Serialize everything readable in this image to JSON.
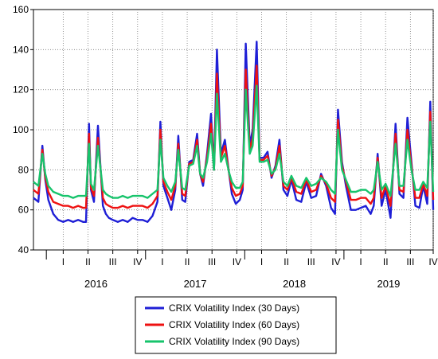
{
  "chart_data": {
    "type": "line",
    "title": "",
    "xlabel": "",
    "ylabel": "",
    "ylim": [
      40,
      160
    ],
    "yticks": [
      40,
      60,
      80,
      100,
      120,
      140,
      160
    ],
    "xlim": [
      2015.75,
      2019.78
    ],
    "grid": "dotted",
    "legend_placement": "bottom",
    "quarters": [
      {
        "label": "I",
        "t": 2016.05
      },
      {
        "label": "II",
        "t": 2016.3
      },
      {
        "label": "III",
        "t": 2016.55
      },
      {
        "label": "IV",
        "t": 2016.8
      },
      {
        "label": "I",
        "t": 2017.05
      },
      {
        "label": "II",
        "t": 2017.3
      },
      {
        "label": "III",
        "t": 2017.55
      },
      {
        "label": "IV",
        "t": 2017.8
      },
      {
        "label": "I",
        "t": 2018.05
      },
      {
        "label": "II",
        "t": 2018.3
      },
      {
        "label": "III",
        "t": 2018.55
      },
      {
        "label": "IV",
        "t": 2018.8
      },
      {
        "label": "I",
        "t": 2019.05
      },
      {
        "label": "II",
        "t": 2019.3
      },
      {
        "label": "III",
        "t": 2019.55
      },
      {
        "label": "IV",
        "t": 2019.78
      }
    ],
    "years": [
      {
        "label": "2016",
        "t": 2016.38
      },
      {
        "label": "2017",
        "t": 2017.38
      },
      {
        "label": "2018",
        "t": 2018.38
      },
      {
        "label": "2019",
        "t": 2019.33
      }
    ],
    "series": [
      {
        "name": "CRIX Volatility Index (30 Days)",
        "color": "#1f1fd6",
        "x": [
          2015.75,
          2015.8,
          2015.84,
          2015.87,
          2015.9,
          2015.95,
          2016.0,
          2016.05,
          2016.1,
          2016.15,
          2016.2,
          2016.25,
          2016.28,
          2016.31,
          2016.33,
          2016.36,
          2016.4,
          2016.45,
          2016.48,
          2016.51,
          2016.55,
          2016.6,
          2016.65,
          2016.7,
          2016.75,
          2016.8,
          2016.85,
          2016.9,
          2016.95,
          2017.0,
          2017.03,
          2017.06,
          2017.1,
          2017.14,
          2017.18,
          2017.21,
          2017.25,
          2017.28,
          2017.32,
          2017.36,
          2017.4,
          2017.43,
          2017.46,
          2017.5,
          2017.54,
          2017.57,
          2017.6,
          2017.64,
          2017.68,
          2017.72,
          2017.75,
          2017.79,
          2017.83,
          2017.86,
          2017.89,
          2017.93,
          2017.96,
          2018.0,
          2018.03,
          2018.07,
          2018.11,
          2018.15,
          2018.19,
          2018.23,
          2018.27,
          2018.31,
          2018.35,
          2018.4,
          2018.45,
          2018.5,
          2018.55,
          2018.6,
          2018.65,
          2018.7,
          2018.75,
          2018.79,
          2018.82,
          2018.86,
          2018.9,
          2018.95,
          2019.0,
          2019.05,
          2019.1,
          2019.15,
          2019.18,
          2019.22,
          2019.26,
          2019.3,
          2019.35,
          2019.4,
          2019.44,
          2019.48,
          2019.52,
          2019.56,
          2019.6,
          2019.64,
          2019.68,
          2019.72,
          2019.75,
          2019.78
        ],
        "y": [
          66,
          64,
          92,
          75,
          65,
          58,
          55,
          54,
          55,
          54,
          55,
          54,
          54,
          103,
          70,
          64,
          102,
          62,
          58,
          56,
          55,
          54,
          55,
          54,
          56,
          55,
          55,
          54,
          57,
          64,
          104,
          72,
          66,
          60,
          70,
          97,
          65,
          64,
          84,
          85,
          98,
          78,
          72,
          88,
          108,
          80,
          140,
          88,
          95,
          79,
          68,
          63,
          65,
          70,
          143,
          92,
          100,
          144,
          86,
          86,
          89,
          76,
          82,
          95,
          70,
          67,
          75,
          65,
          64,
          74,
          66,
          67,
          78,
          72,
          61,
          58,
          110,
          84,
          72,
          60,
          60,
          61,
          62,
          58,
          62,
          88,
          62,
          70,
          56,
          103,
          68,
          66,
          106,
          84,
          62,
          61,
          72,
          63,
          114,
          60
        ]
      },
      {
        "name": "CRIX Volatility Index (60 Days)",
        "color": "#ee1111",
        "x": [
          2015.75,
          2015.8,
          2015.84,
          2015.87,
          2015.9,
          2015.95,
          2016.0,
          2016.05,
          2016.1,
          2016.15,
          2016.2,
          2016.25,
          2016.28,
          2016.31,
          2016.33,
          2016.36,
          2016.4,
          2016.45,
          2016.48,
          2016.51,
          2016.55,
          2016.6,
          2016.65,
          2016.7,
          2016.75,
          2016.8,
          2016.85,
          2016.9,
          2016.95,
          2017.0,
          2017.03,
          2017.06,
          2017.1,
          2017.14,
          2017.18,
          2017.21,
          2017.25,
          2017.28,
          2017.32,
          2017.36,
          2017.4,
          2017.43,
          2017.46,
          2017.5,
          2017.54,
          2017.57,
          2017.6,
          2017.64,
          2017.68,
          2017.72,
          2017.75,
          2017.79,
          2017.83,
          2017.86,
          2017.89,
          2017.93,
          2017.96,
          2018.0,
          2018.03,
          2018.07,
          2018.11,
          2018.15,
          2018.19,
          2018.23,
          2018.27,
          2018.31,
          2018.35,
          2018.4,
          2018.45,
          2018.5,
          2018.55,
          2018.6,
          2018.65,
          2018.7,
          2018.75,
          2018.79,
          2018.82,
          2018.86,
          2018.9,
          2018.95,
          2019.0,
          2019.05,
          2019.1,
          2019.15,
          2019.18,
          2019.22,
          2019.26,
          2019.3,
          2019.35,
          2019.4,
          2019.44,
          2019.48,
          2019.52,
          2019.56,
          2019.6,
          2019.64,
          2019.68,
          2019.72,
          2019.75,
          2019.78
        ],
        "y": [
          70,
          68,
          90,
          76,
          69,
          64,
          63,
          62,
          62,
          61,
          62,
          61,
          61,
          98,
          71,
          67,
          96,
          66,
          63,
          62,
          61,
          61,
          62,
          61,
          62,
          62,
          62,
          61,
          63,
          67,
          100,
          74,
          69,
          65,
          72,
          93,
          68,
          67,
          83,
          84,
          95,
          78,
          74,
          86,
          103,
          80,
          128,
          86,
          92,
          79,
          71,
          67,
          68,
          72,
          130,
          90,
          96,
          132,
          85,
          85,
          87,
          77,
          81,
          92,
          72,
          70,
          76,
          69,
          68,
          75,
          69,
          70,
          77,
          73,
          66,
          64,
          105,
          82,
          74,
          65,
          65,
          66,
          66,
          63,
          66,
          86,
          66,
          72,
          62,
          98,
          70,
          69,
          100,
          82,
          66,
          66,
          73,
          67,
          109,
          65
        ]
      },
      {
        "name": "CRIX Volatility Index (90 Days)",
        "color": "#17c46c",
        "x": [
          2015.75,
          2015.8,
          2015.84,
          2015.87,
          2015.9,
          2015.95,
          2016.0,
          2016.05,
          2016.1,
          2016.15,
          2016.2,
          2016.25,
          2016.28,
          2016.31,
          2016.33,
          2016.36,
          2016.4,
          2016.45,
          2016.48,
          2016.51,
          2016.55,
          2016.6,
          2016.65,
          2016.7,
          2016.75,
          2016.8,
          2016.85,
          2016.9,
          2016.95,
          2017.0,
          2017.03,
          2017.06,
          2017.1,
          2017.14,
          2017.18,
          2017.21,
          2017.25,
          2017.28,
          2017.32,
          2017.36,
          2017.4,
          2017.43,
          2017.46,
          2017.5,
          2017.54,
          2017.57,
          2017.6,
          2017.64,
          2017.68,
          2017.72,
          2017.75,
          2017.79,
          2017.83,
          2017.86,
          2017.89,
          2017.93,
          2017.96,
          2018.0,
          2018.03,
          2018.07,
          2018.11,
          2018.15,
          2018.19,
          2018.23,
          2018.27,
          2018.31,
          2018.35,
          2018.4,
          2018.45,
          2018.5,
          2018.55,
          2018.6,
          2018.65,
          2018.7,
          2018.75,
          2018.79,
          2018.82,
          2018.86,
          2018.9,
          2018.95,
          2019.0,
          2019.05,
          2019.1,
          2019.15,
          2019.18,
          2019.22,
          2019.26,
          2019.3,
          2019.35,
          2019.4,
          2019.44,
          2019.48,
          2019.52,
          2019.56,
          2019.6,
          2019.64,
          2019.68,
          2019.72,
          2019.75,
          2019.78
        ],
        "y": [
          74,
          72,
          88,
          78,
          72,
          69,
          68,
          67,
          67,
          66,
          67,
          67,
          67,
          93,
          73,
          70,
          92,
          70,
          68,
          67,
          66,
          66,
          67,
          66,
          67,
          67,
          67,
          66,
          68,
          70,
          95,
          76,
          72,
          69,
          74,
          90,
          71,
          70,
          82,
          83,
          92,
          78,
          76,
          84,
          98,
          80,
          118,
          84,
          88,
          79,
          74,
          71,
          71,
          74,
          120,
          88,
          92,
          122,
          84,
          84,
          85,
          78,
          80,
          88,
          74,
          72,
          77,
          72,
          71,
          76,
          72,
          73,
          76,
          74,
          70,
          68,
          100,
          80,
          75,
          69,
          69,
          70,
          70,
          68,
          70,
          84,
          70,
          73,
          67,
          93,
          72,
          72,
          95,
          80,
          70,
          70,
          74,
          71,
          104,
          69
        ]
      }
    ]
  }
}
